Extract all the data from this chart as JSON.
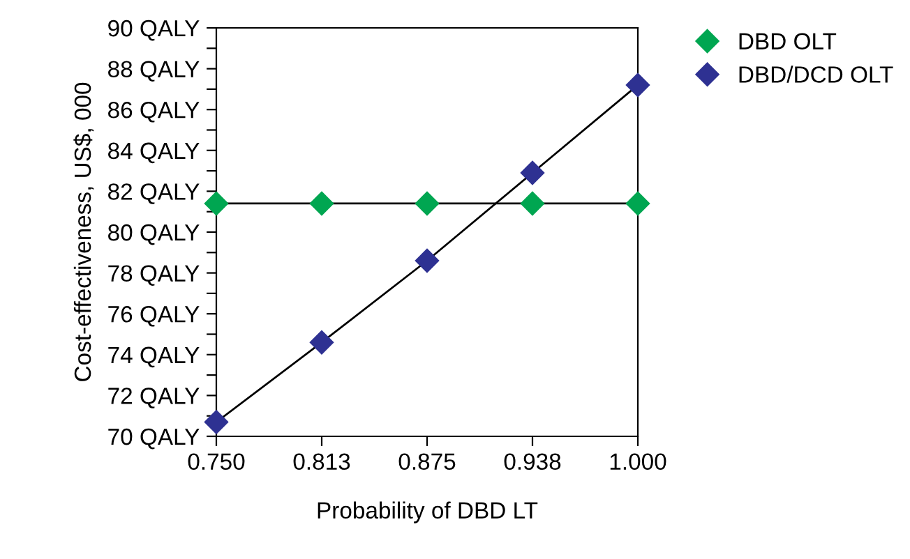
{
  "chart_data": {
    "type": "line",
    "xlabel": "Probability of DBD LT",
    "ylabel": "Cost-effectiveness, US$, 000",
    "x": [
      0.75,
      0.8125,
      0.875,
      0.9375,
      1.0
    ],
    "series": [
      {
        "name": "DBD OLT",
        "color": "#00a651",
        "values": [
          81.4,
          81.4,
          81.4,
          81.4,
          81.4
        ]
      },
      {
        "name": "DBD/DCD OLT",
        "color": "#2e3192",
        "values": [
          70.7,
          74.6,
          78.6,
          82.9,
          87.2
        ]
      }
    ],
    "xlim": [
      0.75,
      1.0
    ],
    "xticks": [
      {
        "value": 0.75,
        "label": "0.750"
      },
      {
        "value": 0.8125,
        "label": "0.813"
      },
      {
        "value": 0.875,
        "label": "0.875"
      },
      {
        "value": 0.9375,
        "label": "0.938"
      },
      {
        "value": 1.0,
        "label": "1.000"
      }
    ],
    "ylim": [
      70,
      90
    ],
    "yticks": [
      {
        "value": 70,
        "label": "70 QALY"
      },
      {
        "value": 71,
        "label": null
      },
      {
        "value": 72,
        "label": "72 QALY"
      },
      {
        "value": 73,
        "label": null
      },
      {
        "value": 74,
        "label": "74 QALY"
      },
      {
        "value": 75,
        "label": null
      },
      {
        "value": 76,
        "label": "76 QALY"
      },
      {
        "value": 77,
        "label": null
      },
      {
        "value": 78,
        "label": "78 QALY"
      },
      {
        "value": 79,
        "label": null
      },
      {
        "value": 80,
        "label": "80 QALY"
      },
      {
        "value": 81,
        "label": null
      },
      {
        "value": 82,
        "label": "82 QALY"
      },
      {
        "value": 83,
        "label": null
      },
      {
        "value": 84,
        "label": "84 QALY"
      },
      {
        "value": 85,
        "label": null
      },
      {
        "value": 86,
        "label": "86 QALY"
      },
      {
        "value": 87,
        "label": null
      },
      {
        "value": 88,
        "label": "88 QALY"
      },
      {
        "value": 89,
        "label": null
      },
      {
        "value": 90,
        "label": "90 QALY"
      }
    ],
    "marker": "diamond",
    "line_style": "solid",
    "grid": false,
    "legend": "top right"
  }
}
